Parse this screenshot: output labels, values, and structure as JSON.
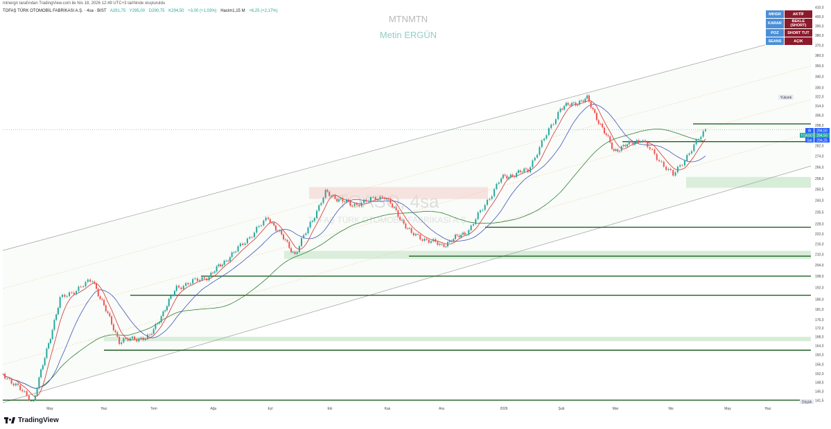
{
  "header": {
    "published": "mtnergn tarafından TradingView.com ile Nis 18, 2026 12:49 UTC+3 tarihinde oluşturuldu",
    "symbol": "TOFAŞ TÜRK OTOMOBİL FABRİKASI A.Ş. · 4sa · BIST",
    "open": "A291,75",
    "high": "Y295,00",
    "low": "D290,75",
    "close": "K294,50",
    "change": "+3,00 (+1,03%)",
    "volume": "Hacim1,15 M",
    "volume_change": "+6,25 (+2,17%)"
  },
  "watermark": {
    "line1": "MTNMTN",
    "line2": "Metin ERGÜN",
    "big_symbol": "TOASO, 4sa",
    "big_name": "TOFAŞ TÜRK OTOMOBİL FABRİKASI A.Ş."
  },
  "status_table": [
    {
      "key": "MIHSR",
      "value": "AKTİF"
    },
    {
      "key": "KARAR",
      "value": "BEKLE (SHORT)"
    },
    {
      "key": "POZ",
      "value": "SHORT TUT"
    },
    {
      "key": "SEANS",
      "value": "AÇIK"
    }
  ],
  "price_tags": {
    "last": "294,50",
    "last_label": "TOASO",
    "ask": "294,50",
    "ask_label": "Al",
    "bid": "294,25",
    "bid_label": "Sat",
    "high_label": "Yüksek",
    "high_value": "327,00",
    "low_label": "Düşük",
    "low_value": "140,4"
  },
  "brand": "TradingView",
  "colors": {
    "up": "#26a69a",
    "down": "#ef5350",
    "ma_red": "#d32f2f",
    "ma_blue": "#3f51b5",
    "ma_green": "#2e7d32",
    "support": "#1b5e20",
    "zone": "#a5d6a7",
    "resist_zone": "#f8c8c8",
    "channel": "#9e9e9e"
  },
  "chart_data": {
    "type": "line",
    "title": "TOFAŞ TÜRK OTOMOBİL FABRİKASI A.Ş. · 4sa · BIST",
    "xlabel": "",
    "ylabel": "",
    "x_ticks": [
      "May",
      "Haz",
      "Tem",
      "Ağu",
      "Eyl",
      "Eki",
      "Kas",
      "Ara",
      "2026",
      "Şub",
      "Mar",
      "Nis",
      "May",
      "Haz"
    ],
    "y_ticks": [
      410.0,
      400.0,
      390.0,
      380.0,
      370.0,
      360.0,
      350.0,
      340.0,
      330.0,
      322.0,
      314.0,
      306.0,
      298.0,
      290.0,
      282.0,
      274.0,
      266.0,
      258.0,
      250.5,
      243.0,
      235.5,
      228.0,
      222.0,
      216.0,
      210.0,
      204.0,
      198.0,
      192.0,
      186.0,
      181.0,
      176.0,
      172.0,
      168.0,
      164.0,
      160.0,
      156.0,
      152.0,
      148.5,
      145.0,
      141.5
    ],
    "ylim": [
      140,
      412
    ],
    "y_scale": "log",
    "grid": false,
    "series": [
      {
        "name": "TOASO",
        "x": [
          "2025-04-15",
          "2025-05-01",
          "2025-05-15",
          "2025-06-01",
          "2025-06-15",
          "2025-07-01",
          "2025-07-15",
          "2025-08-01",
          "2025-08-15",
          "2025-09-01",
          "2025-09-15",
          "2025-10-01",
          "2025-10-15",
          "2025-11-01",
          "2025-11-15",
          "2025-12-01",
          "2025-12-15",
          "2026-01-01",
          "2026-01-15",
          "2026-02-01",
          "2026-02-15",
          "2026-03-01",
          "2026-03-15",
          "2026-04-01",
          "2026-04-18"
        ],
        "values": [
          152,
          141,
          186,
          196,
          166,
          168,
          192,
          198,
          212,
          232,
          210,
          248,
          240,
          246,
          222,
          215,
          224,
          258,
          264,
          312,
          320,
          278,
          287,
          260,
          294.5
        ]
      }
    ],
    "support_levels": [
      299.0,
      285.0,
      226.0,
      209.0,
      198.0,
      188.0,
      162.0,
      141.5
    ],
    "zones": [
      {
        "low": 251.5,
        "high": 259.0
      },
      {
        "low": 207.5,
        "high": 212.0
      },
      {
        "low": 166.0,
        "high": 168.0
      }
    ],
    "resistance_zone": {
      "low": 244.0,
      "high": 252.0
    }
  }
}
